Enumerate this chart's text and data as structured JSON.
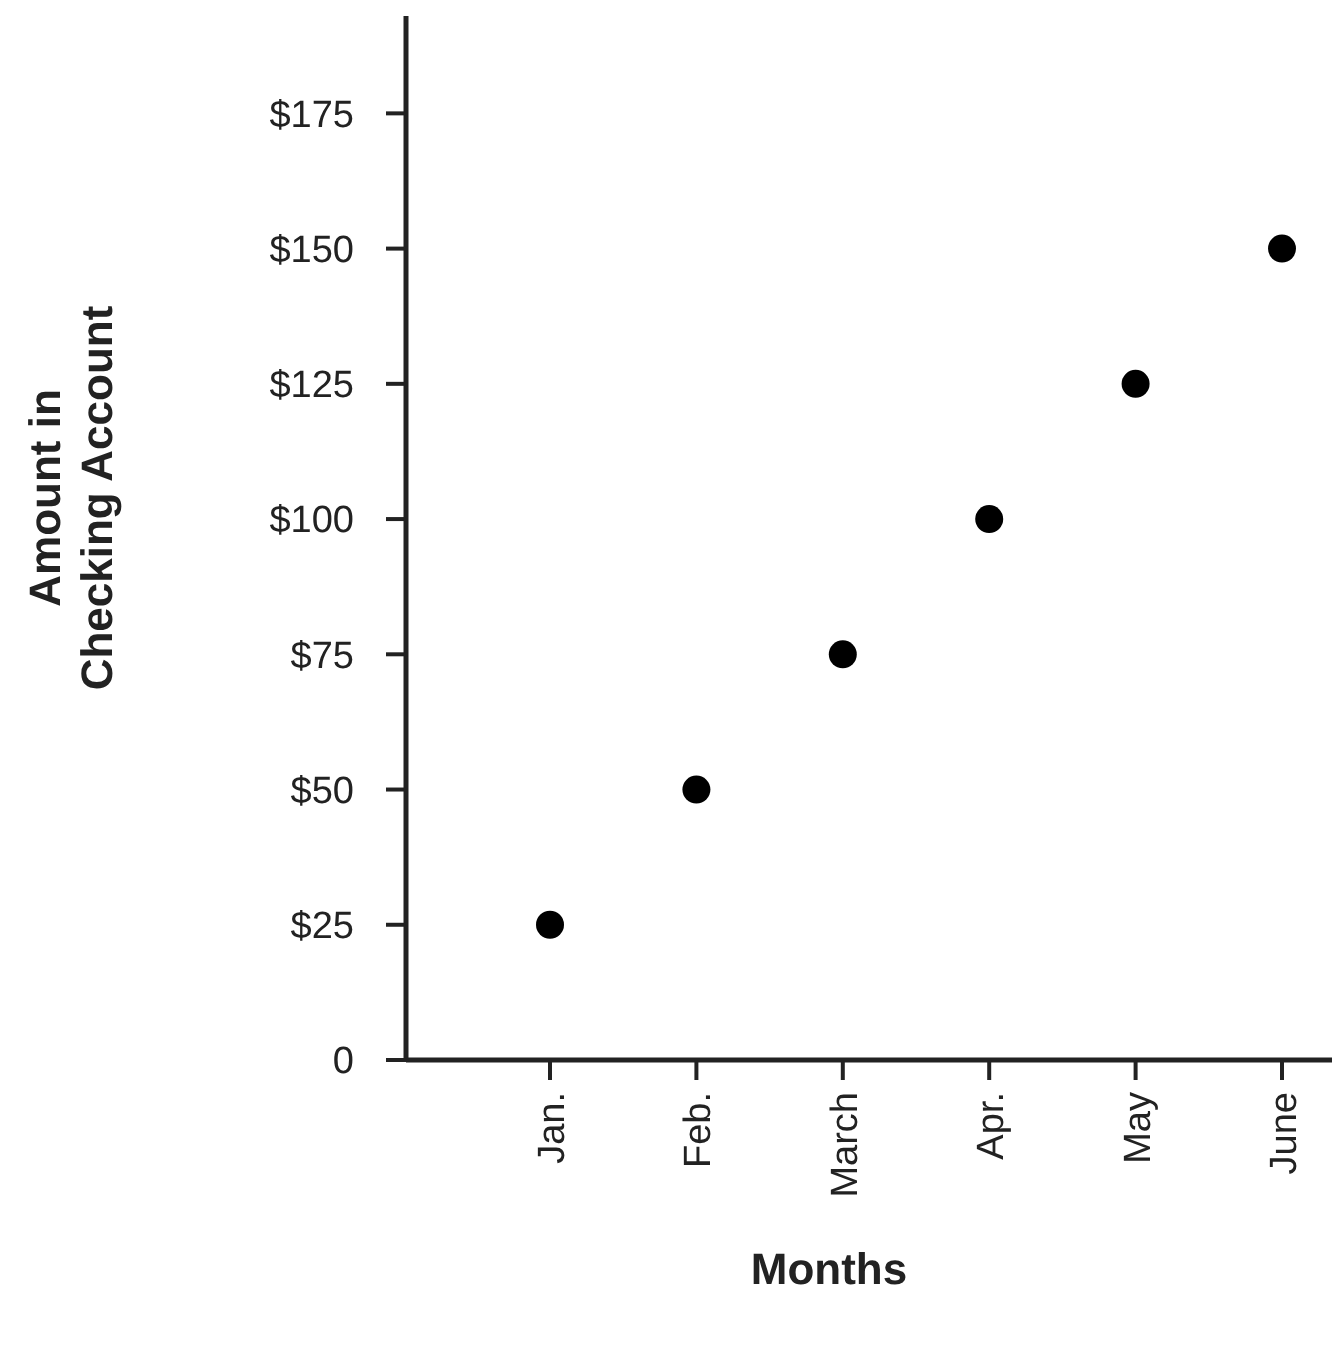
{
  "chart_data": {
    "type": "scatter",
    "xlabel": "Months",
    "ylabel": "Amount in\nChecking Account",
    "categories": [
      "Jan.",
      "Feb.",
      "March",
      "Apr.",
      "May",
      "June"
    ],
    "series": [
      {
        "color": "#000000",
        "values": [
          25,
          50,
          75,
          100,
          125,
          150
        ]
      }
    ],
    "ylim": [
      0,
      193
    ],
    "yticks": [
      {
        "value": 0,
        "label": "0"
      },
      {
        "value": 25,
        "label": "$25"
      },
      {
        "value": 50,
        "label": "$50"
      },
      {
        "value": 75,
        "label": "$75"
      },
      {
        "value": 100,
        "label": "$100"
      },
      {
        "value": 125,
        "label": "$125"
      },
      {
        "value": 150,
        "label": "$150"
      },
      {
        "value": 175,
        "label": "$175"
      }
    ],
    "marker": "circle"
  }
}
